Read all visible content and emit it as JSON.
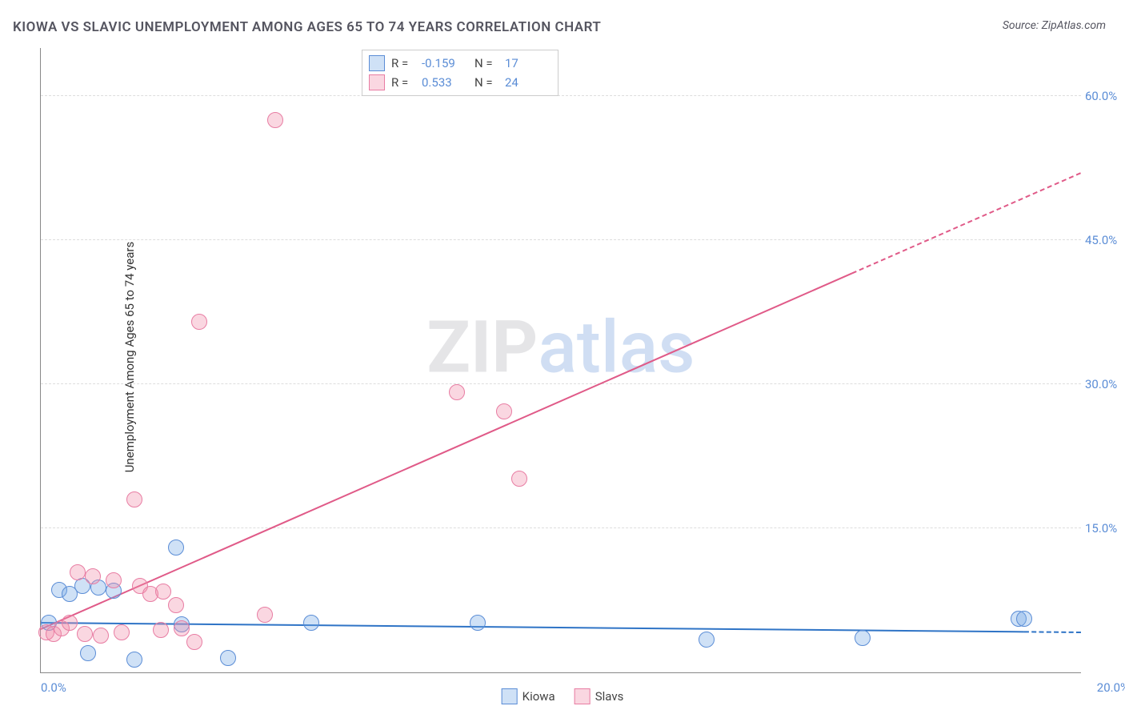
{
  "title": "KIOWA VS SLAVIC UNEMPLOYMENT AMONG AGES 65 TO 74 YEARS CORRELATION CHART",
  "source": "Source: ZipAtlas.com",
  "ylabel": "Unemployment Among Ages 65 to 74 years",
  "watermark": {
    "zip": "ZIP",
    "atlas": "atlas"
  },
  "chart": {
    "type": "scatter",
    "xlim": [
      0,
      20
    ],
    "ylim": [
      0,
      65
    ],
    "xticks": [
      0,
      20
    ],
    "xtick_labels": [
      "0.0%",
      "20.0%"
    ],
    "yticks": [
      15,
      30,
      45,
      60
    ],
    "ytick_labels": [
      "15.0%",
      "30.0%",
      "45.0%",
      "60.0%"
    ],
    "grid_color": "#dddddd",
    "axis_color": "#888888",
    "tick_label_color": "#5b8dd6",
    "background_color": "#ffffff",
    "marker_radius": 9,
    "marker_stroke_width": 1.5,
    "series": [
      {
        "name": "Kiowa",
        "fill": "rgba(118,168,228,0.35)",
        "stroke": "#5b8dd6",
        "R": "-0.159",
        "N": "17",
        "points": [
          {
            "x": 0.15,
            "y": 5.2
          },
          {
            "x": 0.35,
            "y": 8.6
          },
          {
            "x": 0.55,
            "y": 8.2
          },
          {
            "x": 0.8,
            "y": 9.0
          },
          {
            "x": 0.9,
            "y": 2.0
          },
          {
            "x": 1.1,
            "y": 8.8
          },
          {
            "x": 1.4,
            "y": 8.5
          },
          {
            "x": 1.8,
            "y": 1.3
          },
          {
            "x": 2.6,
            "y": 13.0
          },
          {
            "x": 2.7,
            "y": 5.0
          },
          {
            "x": 3.6,
            "y": 1.5
          },
          {
            "x": 5.2,
            "y": 5.2
          },
          {
            "x": 8.4,
            "y": 5.2
          },
          {
            "x": 12.8,
            "y": 3.4
          },
          {
            "x": 15.8,
            "y": 3.6
          },
          {
            "x": 18.8,
            "y": 5.6
          },
          {
            "x": 18.9,
            "y": 5.6
          }
        ],
        "trend": {
          "x1": 0,
          "y1": 5.2,
          "x2": 20,
          "y2": 4.2,
          "solid_to_x": 18.9,
          "color": "#2f74c6",
          "width": 2
        }
      },
      {
        "name": "Slavs",
        "fill": "rgba(240,140,170,0.35)",
        "stroke": "#e87da3",
        "R": "0.533",
        "N": "24",
        "points": [
          {
            "x": 0.1,
            "y": 4.2
          },
          {
            "x": 0.25,
            "y": 4.0
          },
          {
            "x": 0.4,
            "y": 4.6
          },
          {
            "x": 0.55,
            "y": 5.2
          },
          {
            "x": 0.7,
            "y": 10.4
          },
          {
            "x": 0.85,
            "y": 4.0
          },
          {
            "x": 1.0,
            "y": 10.0
          },
          {
            "x": 1.15,
            "y": 3.8
          },
          {
            "x": 1.4,
            "y": 9.6
          },
          {
            "x": 1.55,
            "y": 4.2
          },
          {
            "x": 1.8,
            "y": 18.0
          },
          {
            "x": 1.9,
            "y": 9.0
          },
          {
            "x": 2.1,
            "y": 8.2
          },
          {
            "x": 2.3,
            "y": 4.4
          },
          {
            "x": 2.35,
            "y": 8.4
          },
          {
            "x": 2.6,
            "y": 7.0
          },
          {
            "x": 2.7,
            "y": 4.6
          },
          {
            "x": 2.95,
            "y": 3.2
          },
          {
            "x": 3.05,
            "y": 36.5
          },
          {
            "x": 4.3,
            "y": 6.0
          },
          {
            "x": 4.5,
            "y": 57.5
          },
          {
            "x": 8.0,
            "y": 29.2
          },
          {
            "x": 8.9,
            "y": 27.2
          },
          {
            "x": 9.2,
            "y": 20.2
          }
        ],
        "trend": {
          "x1": 0,
          "y1": 4.5,
          "x2": 20,
          "y2": 52.0,
          "solid_to_x": 15.6,
          "color": "#e05a88",
          "width": 2
        }
      }
    ]
  },
  "legend_top": {
    "r_label": "R =",
    "n_label": "N ="
  },
  "legend_bottom": [
    {
      "label": "Kiowa",
      "fill": "rgba(118,168,228,0.35)",
      "stroke": "#5b8dd6"
    },
    {
      "label": "Slavs",
      "fill": "rgba(240,140,170,0.35)",
      "stroke": "#e87da3"
    }
  ]
}
